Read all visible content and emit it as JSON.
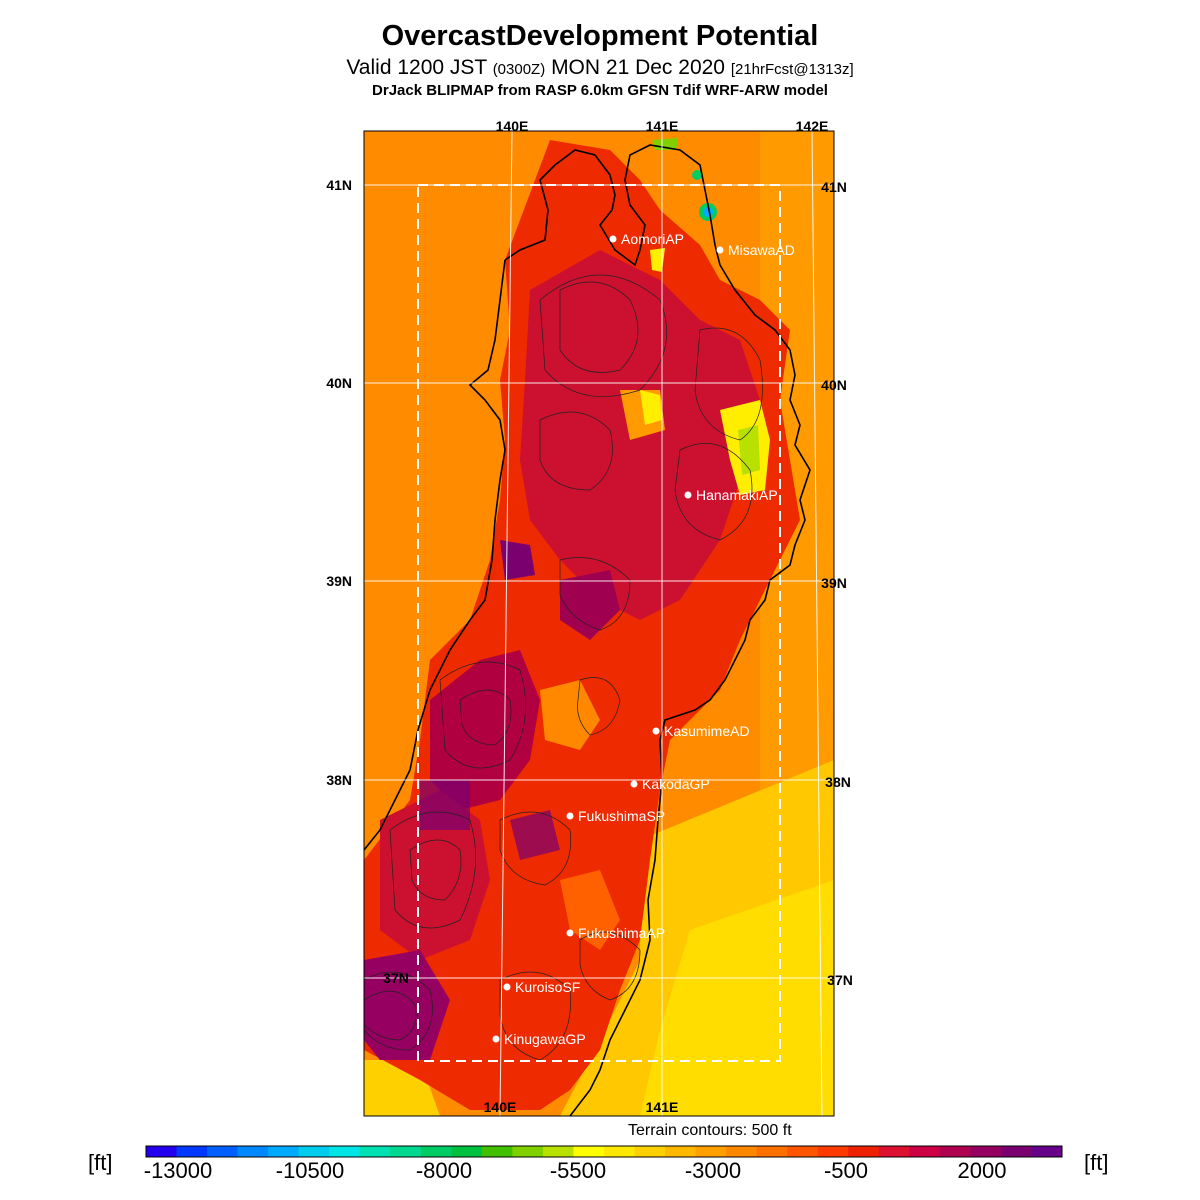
{
  "header": {
    "title": "OvercastDevelopment Potential",
    "valid_prefix": "Valid 1200 JST",
    "valid_utc": "(0300Z)",
    "valid_date": "MON 21 Dec 2020",
    "forecast_info": "[21hrFcst@1313z]",
    "model_line": "DrJack BLIPMAP from RASP 6.0km GFSN Tdif WRF-ARW model"
  },
  "map": {
    "lon_labels": [
      "140E",
      "141E",
      "142E"
    ],
    "lat_labels": [
      "41N",
      "40N",
      "39N",
      "38N",
      "37N"
    ],
    "stations": [
      "AomoriAP",
      "MisawaAD",
      "HanamakiAP",
      "KasumimeAD",
      "KakodaGP",
      "FukushimaSP",
      "FukushimaAP",
      "KuroisoSF",
      "KinugawaGP"
    ],
    "terrain_note": "Terrain contours: 500 ft"
  },
  "colorbar": {
    "unit": "[ft]",
    "ticks": [
      "-13000",
      "-10500",
      "-8000",
      "-5500",
      "-3000",
      "-500",
      "2000"
    ],
    "colors": [
      "#2200ee",
      "#0038ff",
      "#0060ff",
      "#0088ff",
      "#00aaff",
      "#00ccee",
      "#00e6e6",
      "#00e0b0",
      "#00d890",
      "#00cc66",
      "#00c040",
      "#40c000",
      "#80d000",
      "#b8e000",
      "#ffff00",
      "#ffe800",
      "#ffd000",
      "#ffb800",
      "#ffa000",
      "#ff8800",
      "#ff7000",
      "#ff5500",
      "#ff3a00",
      "#ee2200",
      "#dd1030",
      "#cc0044",
      "#b00050",
      "#960060",
      "#7a0070",
      "#660088"
    ]
  },
  "chart_data": {
    "type": "heatmap",
    "title": "OvercastDevelopment Potential",
    "colorbar_unit": "[ft]",
    "colorbar_ticks": [
      -13000,
      -10500,
      -8000,
      -5500,
      -3000,
      -500,
      2000
    ],
    "lon_ticks": [
      "140E",
      "141E",
      "142E"
    ],
    "lat_ticks": [
      "41N",
      "40N",
      "39N",
      "38N",
      "37N"
    ]
  }
}
